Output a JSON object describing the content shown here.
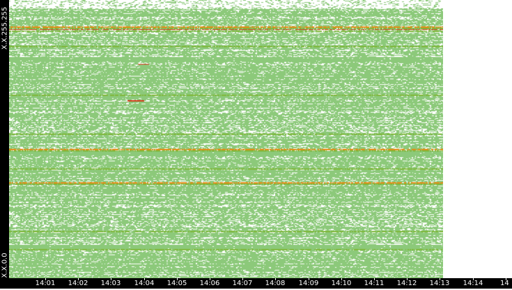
{
  "chart_data": {
    "type": "heatmap",
    "title": "",
    "xlabel": "",
    "ylabel": "",
    "y_tick_labels": [
      "X.X.255.255",
      "X.X.0.0"
    ],
    "x_tick_labels": [
      "14:01",
      "14:02",
      "14:03",
      "14:04",
      "14:05",
      "14:06",
      "14:07",
      "14:08",
      "14:09",
      "14:10",
      "14:11",
      "14:12",
      "14:13",
      "14:14",
      "14"
    ],
    "x_data_end_label": "14:13",
    "colors": {
      "low": "#8cc97a",
      "mid": "#7fb83a",
      "high": "#e88a12",
      "peak": "#d23a1a",
      "background": "#ffffff",
      "axis": "#000000"
    },
    "hot_rows": [
      {
        "y_fraction": 0.905,
        "level": "high"
      },
      {
        "y_fraction": 0.895,
        "level": "peak"
      },
      {
        "y_fraction": 0.835,
        "level": "mid"
      },
      {
        "y_fraction": 0.66,
        "level": "mid"
      },
      {
        "y_fraction": 0.52,
        "level": "mid"
      },
      {
        "y_fraction": 0.465,
        "level": "high"
      },
      {
        "y_fraction": 0.395,
        "level": "mid"
      },
      {
        "y_fraction": 0.345,
        "level": "high"
      },
      {
        "y_fraction": 0.17,
        "level": "mid"
      },
      {
        "y_fraction": 0.105,
        "level": "mid"
      }
    ]
  }
}
